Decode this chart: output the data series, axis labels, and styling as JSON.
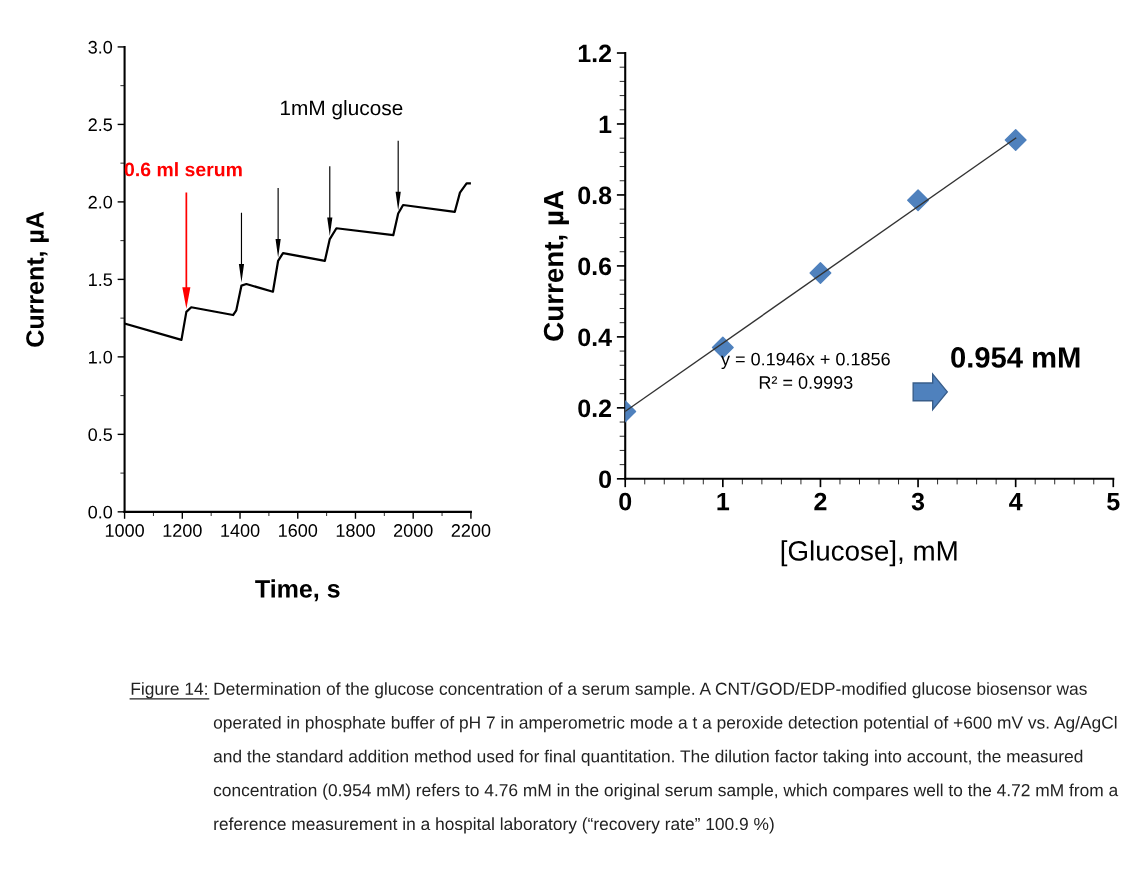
{
  "chart_data": [
    {
      "type": "line",
      "xlabel": "Time, s",
      "ylabel": "Current, µA",
      "x": [
        1000,
        1197,
        1214,
        1231,
        1376,
        1387,
        1405,
        1422,
        1514,
        1532,
        1549,
        1694,
        1711,
        1734,
        1931,
        1948,
        1965,
        2144,
        2162,
        2185,
        2197
      ],
      "series": [
        {
          "color": "#000000",
          "values": [
            1.215,
            1.11,
            1.29,
            1.32,
            1.27,
            1.3,
            1.46,
            1.47,
            1.42,
            1.62,
            1.67,
            1.62,
            1.76,
            1.83,
            1.785,
            1.925,
            1.98,
            1.935,
            2.06,
            2.12,
            2.12
          ]
        }
      ],
      "xlim": [
        1000,
        2200
      ],
      "xticks": [
        1000,
        {
          "value": 1100,
          "label": null
        },
        1200,
        {
          "value": 1300,
          "label": null
        },
        1400,
        {
          "value": 1500,
          "label": null
        },
        1600,
        {
          "value": 1700,
          "label": null
        },
        1800,
        {
          "value": 1900,
          "label": null
        },
        2000,
        {
          "value": 2100,
          "label": null
        },
        2200
      ],
      "ylim": [
        0,
        3
      ],
      "yticks": [
        {
          "value": 0,
          "label": "0.0"
        },
        {
          "value": 0.25,
          "label": null
        },
        0.5,
        {
          "value": 0.75,
          "label": null
        },
        {
          "value": 1,
          "label": "1.0"
        },
        {
          "value": 1.25,
          "label": null
        },
        1.5,
        {
          "value": 1.75,
          "label": null
        },
        {
          "value": 2,
          "label": "2.0"
        },
        {
          "value": 2.25,
          "label": null
        },
        2.5,
        {
          "value": 2.75,
          "label": null
        },
        {
          "value": 3,
          "label": "3.0"
        }
      ],
      "grid": false,
      "legend": false,
      "marker": "none",
      "line_style": "solid",
      "annotations": [
        "0.6 ml serum",
        "1mM glucose",
        "Figure 14:",
        "Determination of the glucose concentration of a serum sample. A CNT/GOD/EDP-modified glucose biosensor was operated in phosphate buffer of pH 7 in amperometric mode a t a peroxide detection potential of +600 mV vs. Ag/AgCl and the standard addition method used for final quantitation. The dilution factor taking into account, the measured concentration (0.954 mM) refers to 4.76 mM in the original serum sample, which compares well to the 4.72 mM from a reference measurement in a hospital laboratory (“recovery rate” 100.9 %)"
      ]
    },
    {
      "type": "scatter",
      "xlabel": "[Glucose], mM",
      "ylabel": "Current, µA",
      "x": [
        0,
        1,
        2,
        3,
        4
      ],
      "series": [
        {
          "color": "#4f81bd",
          "values": [
            0.19,
            0.37,
            0.58,
            0.785,
            0.955
          ],
          "marker": "diamond"
        },
        {
          "type": "line",
          "color": "#333333",
          "x": [
            0,
            4
          ],
          "values": [
            0.19,
            0.96
          ],
          "marker": "none"
        }
      ],
      "xlim": [
        0,
        5
      ],
      "xticks": [
        0,
        {
          "value": 0.2,
          "label": null
        },
        {
          "value": 0.4,
          "label": null
        },
        {
          "value": 0.6,
          "label": null
        },
        {
          "value": 0.8,
          "label": null
        },
        1,
        {
          "value": 1.2,
          "label": null
        },
        {
          "value": 1.4,
          "label": null
        },
        {
          "value": 1.6,
          "label": null
        },
        {
          "value": 1.8,
          "label": null
        },
        2,
        {
          "value": 2.2,
          "label": null
        },
        {
          "value": 2.4,
          "label": null
        },
        {
          "value": 2.6,
          "label": null
        },
        {
          "value": 2.8,
          "label": null
        },
        3,
        {
          "value": 3.2,
          "label": null
        },
        {
          "value": 3.4,
          "label": null
        },
        {
          "value": 3.6,
          "label": null
        },
        {
          "value": 3.8,
          "label": null
        },
        4,
        {
          "value": 4.2,
          "label": null
        },
        {
          "value": 4.4,
          "label": null
        },
        {
          "value": 4.6,
          "label": null
        },
        {
          "value": 4.8,
          "label": null
        },
        5
      ],
      "ylim": [
        0,
        1.2
      ],
      "yticks": [
        0,
        {
          "value": 0.04,
          "label": null
        },
        {
          "value": 0.08,
          "label": null
        },
        {
          "value": 0.12,
          "label": null
        },
        {
          "value": 0.16,
          "label": null
        },
        0.2,
        {
          "value": 0.24,
          "label": null
        },
        {
          "value": 0.28,
          "label": null
        },
        {
          "value": 0.32,
          "label": null
        },
        {
          "value": 0.36,
          "label": null
        },
        0.4,
        {
          "value": 0.44,
          "label": null
        },
        {
          "value": 0.48,
          "label": null
        },
        {
          "value": 0.52,
          "label": null
        },
        {
          "value": 0.56,
          "label": null
        },
        0.6,
        {
          "value": 0.64,
          "label": null
        },
        {
          "value": 0.68,
          "label": null
        },
        {
          "value": 0.72,
          "label": null
        },
        {
          "value": 0.76,
          "label": null
        },
        0.8,
        {
          "value": 0.84,
          "label": null
        },
        {
          "value": 0.88,
          "label": null
        },
        {
          "value": 0.92,
          "label": null
        },
        {
          "value": 0.96,
          "label": null
        },
        1,
        {
          "value": 1.04,
          "label": null
        },
        {
          "value": 1.08,
          "label": null
        },
        {
          "value": 1.12,
          "label": null
        },
        {
          "value": 1.16,
          "label": null
        },
        1.2
      ],
      "grid": false,
      "legend": false,
      "annotations": [
        "y = 0.1946x + 0.1856",
        "R² = 0.9993",
        "0.954 mM"
      ]
    }
  ]
}
